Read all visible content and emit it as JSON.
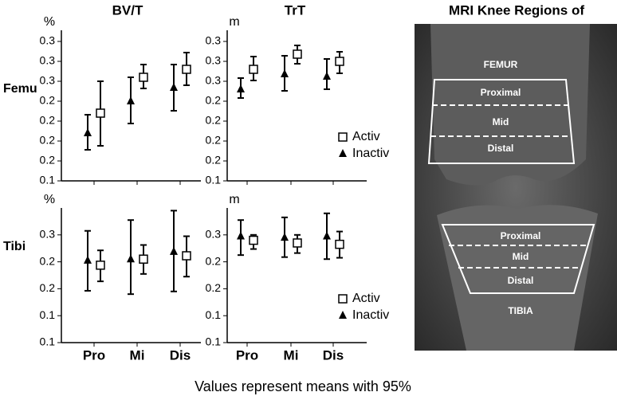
{
  "chart_data": [
    {
      "type": "errorbar",
      "title": "BV/T",
      "ylabel": "%",
      "ylim": [
        0.125,
        0.314
      ],
      "yticks": [
        {
          "value": 0.125,
          "label": "0.1"
        },
        {
          "value": 0.15,
          "label": "0.2"
        },
        {
          "value": 0.175,
          "label": "0.2"
        },
        0.2,
        {
          "value": 0.225,
          "label": "0.2"
        },
        {
          "value": 0.25,
          "label": "0.3"
        },
        {
          "value": 0.275,
          "label": "0.3"
        },
        0.3
      ],
      "series": [
        {
          "marker": "square",
          "color": "#000000",
          "values": [
            0.21,
            0.255,
            0.265
          ],
          "lower": [
            0.169,
            0.241,
            0.245
          ],
          "upper": [
            0.25,
            0.271,
            0.286
          ]
        },
        {
          "marker": "triangle",
          "color": "#000000",
          "values": [
            0.185,
            0.225,
            0.242
          ],
          "lower": [
            0.164,
            0.197,
            0.213
          ],
          "upper": [
            0.208,
            0.255,
            0.271
          ]
        }
      ]
    },
    {
      "type": "errorbar",
      "title": "TrT",
      "ylabel": "m",
      "ylim": [
        0.125,
        0.314
      ],
      "yticks": [
        {
          "value": 0.125,
          "label": "0.1"
        },
        {
          "value": 0.15,
          "label": "0.2"
        },
        {
          "value": 0.175,
          "label": "0.2"
        },
        0.2,
        {
          "value": 0.225,
          "label": "0.2"
        },
        {
          "value": 0.25,
          "label": "0.3"
        },
        {
          "value": 0.275,
          "label": "0.3"
        },
        0.3
      ],
      "legend": "lower right",
      "series": [
        {
          "name": "Activ",
          "marker": "square",
          "color": "#000000",
          "values": [
            0.265,
            0.284,
            0.275
          ],
          "lower": [
            0.251,
            0.272,
            0.26
          ],
          "upper": [
            0.281,
            0.295,
            0.287
          ]
        },
        {
          "name": "Inactiv",
          "marker": "triangle",
          "color": "#000000",
          "values": [
            0.24,
            0.259,
            0.256
          ],
          "lower": [
            0.229,
            0.238,
            0.24
          ],
          "upper": [
            0.254,
            0.282,
            0.278
          ]
        }
      ]
    },
    {
      "type": "errorbar",
      "ylabel": "%",
      "categories": [
        "Pro",
        "Mi",
        "Dis"
      ],
      "ylim": [
        0.1,
        0.3
      ],
      "yticks": [
        0.1,
        {
          "value": 0.14,
          "label": "0.1"
        },
        {
          "value": 0.18,
          "label": "0.2"
        },
        {
          "value": 0.22,
          "label": "0.2"
        },
        {
          "value": 0.26,
          "label": "0.3"
        }
      ],
      "series": [
        {
          "marker": "square",
          "color": "#000000",
          "values": [
            0.215,
            0.224,
            0.229
          ],
          "lower": [
            0.191,
            0.202,
            0.198
          ],
          "upper": [
            0.237,
            0.245,
            0.258
          ]
        },
        {
          "marker": "triangle",
          "color": "#000000",
          "values": [
            0.222,
            0.224,
            0.235
          ],
          "lower": [
            0.177,
            0.172,
            0.176
          ],
          "upper": [
            0.266,
            0.282,
            0.296
          ]
        }
      ]
    },
    {
      "type": "errorbar",
      "ylabel": "m",
      "categories": [
        "Pro",
        "Mi",
        "Dis"
      ],
      "ylim": [
        0.1,
        0.3
      ],
      "yticks": [
        0.1,
        {
          "value": 0.14,
          "label": "0.1"
        },
        {
          "value": 0.18,
          "label": "0.2"
        },
        {
          "value": 0.22,
          "label": "0.2"
        },
        {
          "value": 0.26,
          "label": "0.3"
        }
      ],
      "legend": "lower right",
      "series": [
        {
          "name": "Activ",
          "marker": "square",
          "color": "#000000",
          "values": [
            0.252,
            0.248,
            0.246
          ],
          "lower": [
            0.239,
            0.233,
            0.226
          ],
          "upper": [
            0.26,
            0.26,
            0.265
          ]
        },
        {
          "name": "Inactiv",
          "marker": "triangle",
          "color": "#000000",
          "values": [
            0.258,
            0.256,
            0.258
          ],
          "lower": [
            0.23,
            0.227,
            0.224
          ],
          "upper": [
            0.282,
            0.286,
            0.292
          ]
        }
      ]
    }
  ],
  "rows": [
    "Femu",
    "Tibi"
  ],
  "caption": "Values represent means with 95%",
  "mri": {
    "title": "MRI Knee Regions of",
    "femur": "FEMUR",
    "femur_regions": [
      "Proximal",
      "Mid",
      "Distal"
    ],
    "tibia": "TIBIA",
    "tibia_regions": [
      "Proximal",
      "Mid",
      "Distal"
    ]
  }
}
